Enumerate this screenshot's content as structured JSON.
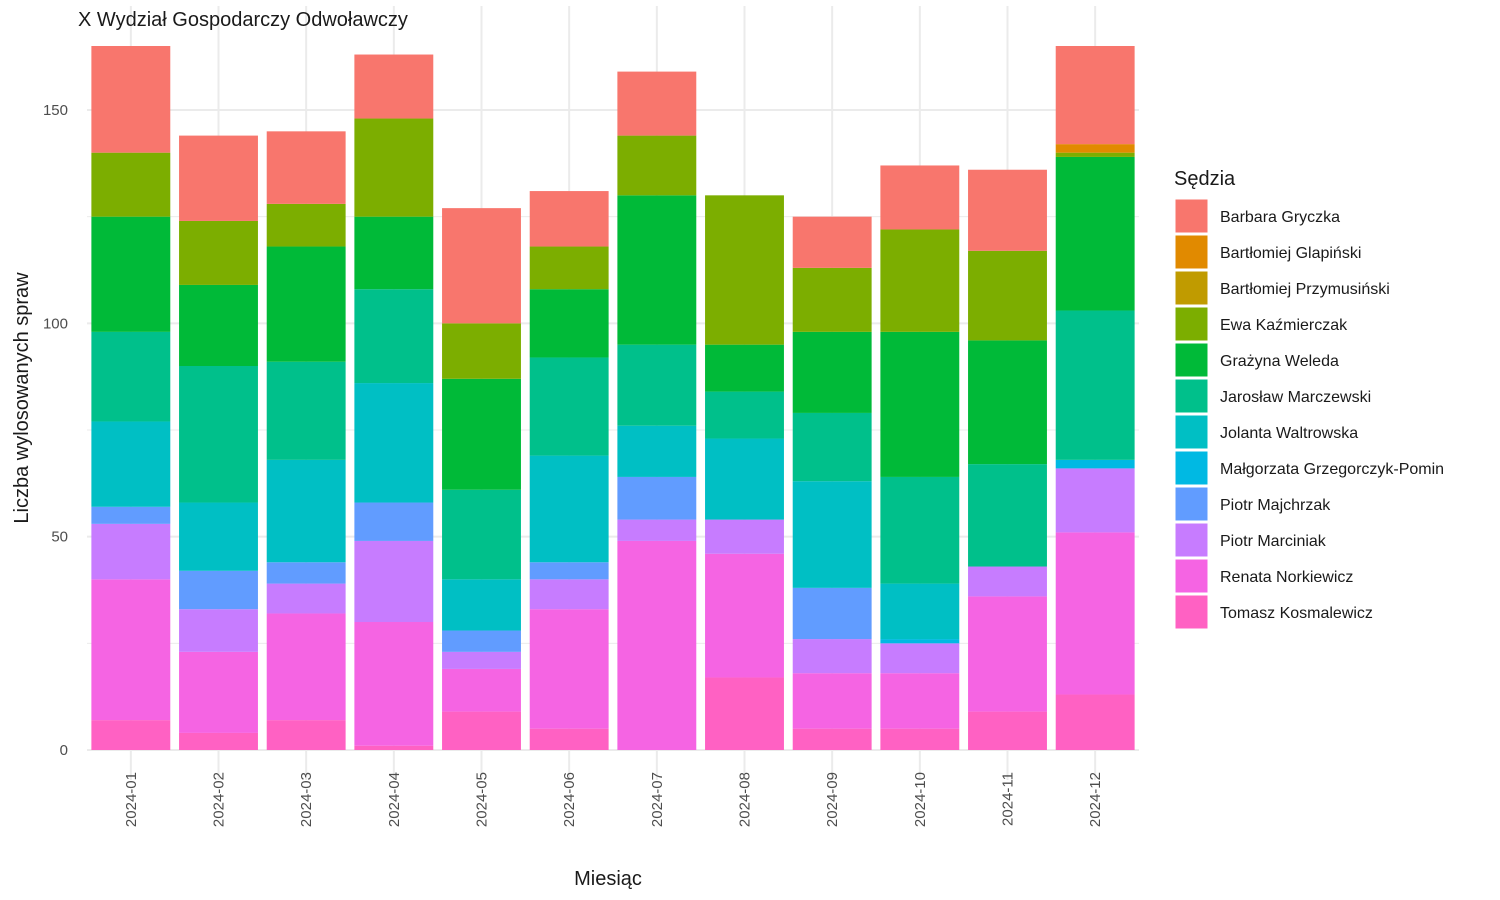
{
  "chart_data": {
    "type": "bar",
    "stacked": true,
    "title": "X Wydział Gospodarczy Odwoławczy",
    "xlabel": "Miesiąc",
    "ylabel": "Liczba wylosowanych spraw",
    "ylim": [
      0,
      165
    ],
    "y_ticks": [
      0,
      50,
      100,
      150
    ],
    "grid": true,
    "legend": {
      "title": "Sędzia",
      "position": "right"
    },
    "categories": [
      "2024-01",
      "2024-02",
      "2024-03",
      "2024-04",
      "2024-05",
      "2024-06",
      "2024-07",
      "2024-08",
      "2024-09",
      "2024-10",
      "2024-11",
      "2024-12"
    ],
    "series": [
      {
        "name": "Tomasz Kosmalewicz",
        "color": "#FF61C3",
        "values": [
          7,
          4,
          7,
          1,
          9,
          5,
          0,
          17,
          5,
          5,
          9,
          13
        ]
      },
      {
        "name": "Renata Norkiewicz",
        "color": "#F564E3",
        "values": [
          33,
          19,
          25,
          29,
          10,
          28,
          49,
          29,
          13,
          13,
          27,
          38
        ]
      },
      {
        "name": "Piotr Marciniak",
        "color": "#C77CFF",
        "values": [
          13,
          10,
          7,
          19,
          4,
          7,
          5,
          8,
          8,
          7,
          7,
          15
        ]
      },
      {
        "name": "Piotr Majchrzak",
        "color": "#619CFF",
        "values": [
          4,
          9,
          5,
          9,
          5,
          4,
          10,
          0,
          12,
          0,
          0,
          0
        ]
      },
      {
        "name": "Małgorzata Grzegorczyk-Pomin",
        "color": "#00B9E3",
        "values": [
          0,
          0,
          0,
          0,
          0,
          0,
          0,
          0,
          0,
          1,
          0,
          2
        ]
      },
      {
        "name": "Jolanta Waltrowska",
        "color": "#00BFC4",
        "values": [
          20,
          16,
          24,
          28,
          12,
          25,
          12,
          19,
          25,
          13,
          0,
          0
        ]
      },
      {
        "name": "Jarosław Marczewski",
        "color": "#00C08B",
        "values": [
          21,
          32,
          23,
          22,
          21,
          23,
          19,
          11,
          16,
          25,
          24,
          35
        ]
      },
      {
        "name": "Grażyna Weleda",
        "color": "#00BA38",
        "values": [
          27,
          19,
          27,
          17,
          26,
          16,
          35,
          11,
          19,
          34,
          29,
          36
        ]
      },
      {
        "name": "Ewa Kaźmierczak",
        "color": "#7CAE00",
        "values": [
          15,
          15,
          10,
          23,
          13,
          10,
          14,
          35,
          15,
          24,
          21,
          1
        ]
      },
      {
        "name": "Bartłomiej Przymusiński",
        "color": "#C09B00",
        "values": [
          0,
          0,
          0,
          0,
          0,
          0,
          0,
          0,
          0,
          0,
          0,
          0
        ]
      },
      {
        "name": "Bartłomiej Glapiński",
        "color": "#E18A00",
        "values": [
          0,
          0,
          0,
          0,
          0,
          0,
          0,
          0,
          0,
          0,
          0,
          2
        ]
      },
      {
        "name": "Barbara Gryczka",
        "color": "#F8766D",
        "values": [
          25,
          20,
          17,
          15,
          27,
          13,
          15,
          0,
          12,
          15,
          19,
          23
        ]
      }
    ],
    "legend_order": [
      "Barbara Gryczka",
      "Bartłomiej Glapiński",
      "Bartłomiej Przymusiński",
      "Ewa Kaźmierczak",
      "Grażyna Weleda",
      "Jarosław Marczewski",
      "Jolanta Waltrowska",
      "Małgorzata Grzegorczyk-Pomin",
      "Piotr Majchrzak",
      "Piotr Marciniak",
      "Renata Norkiewicz",
      "Tomasz Kosmalewicz"
    ],
    "colors": {
      "grid": "#ebebeb",
      "background": "#ffffff",
      "tick_text": "#4d4d4d"
    }
  }
}
